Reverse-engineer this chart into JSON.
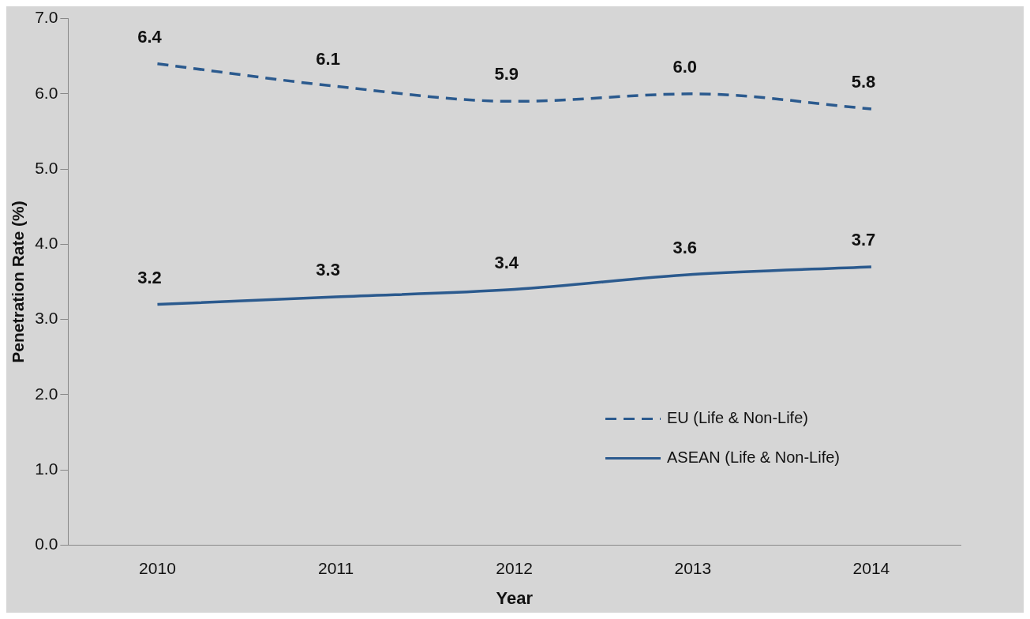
{
  "chart_data": {
    "type": "line",
    "xlabel": "Year",
    "ylabel": "Penetration Rate (%)",
    "categories": [
      "2010",
      "2011",
      "2012",
      "2013",
      "2014"
    ],
    "series": [
      {
        "name": "EU (Life & Non-Life)",
        "color": "#2b5a8e",
        "line_style": "dashed",
        "values": [
          6.4,
          6.1,
          5.9,
          6.0,
          5.8
        ],
        "value_labels": [
          "6.4",
          "6.1",
          "5.9",
          "6.0",
          "5.8"
        ]
      },
      {
        "name": "ASEAN (Life & Non-Life)",
        "color": "#2b5a8e",
        "line_style": "solid",
        "values": [
          3.2,
          3.3,
          3.4,
          3.6,
          3.7
        ],
        "value_labels": [
          "3.2",
          "3.3",
          "3.4",
          "3.6",
          "3.7"
        ]
      }
    ],
    "ylim": [
      0,
      7
    ],
    "yticks": [
      {
        "value": 0,
        "label": "0.0"
      },
      {
        "value": 1,
        "label": "1.0"
      },
      {
        "value": 2,
        "label": "2.0"
      },
      {
        "value": 3,
        "label": "3.0"
      },
      {
        "value": 4,
        "label": "4.0"
      },
      {
        "value": 5,
        "label": "5.0"
      },
      {
        "value": 6,
        "label": "6.0"
      },
      {
        "value": 7,
        "label": "7.0"
      }
    ],
    "grid": false,
    "legend": "bottom right",
    "marker": "none"
  }
}
